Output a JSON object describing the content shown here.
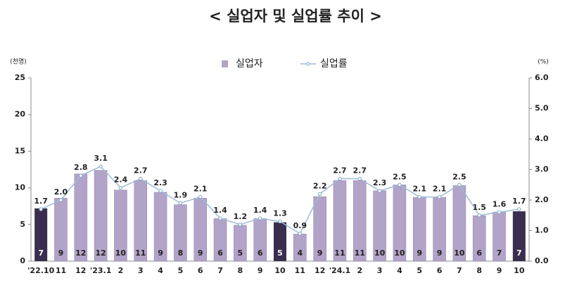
{
  "chart_data": {
    "type": "bar_line",
    "title": "< 실업자 및 실업률 추이 >",
    "y_label": "(천명)",
    "y2_label": "(%)",
    "categories": [
      "'22.10",
      "11",
      "12",
      "'23.1",
      "2",
      "3",
      "4",
      "5",
      "6",
      "7",
      "8",
      "9",
      "10",
      "11",
      "12",
      "'24.1",
      "2",
      "3",
      "4",
      "5",
      "6",
      "7",
      "8",
      "9",
      "10"
    ],
    "series": [
      {
        "name": "실업자",
        "type": "bar",
        "color": "#b2a3c8",
        "colors": [
          "#3a2e4e",
          "#b2a3c8",
          "#b2a3c8",
          "#b2a3c8",
          "#b2a3c8",
          "#b2a3c8",
          "#b2a3c8",
          "#b2a3c8",
          "#b2a3c8",
          "#b2a3c8",
          "#b2a3c8",
          "#b2a3c8",
          "#3a2e4e",
          "#b2a3c8",
          "#b2a3c8",
          "#b2a3c8",
          "#b2a3c8",
          "#b2a3c8",
          "#b2a3c8",
          "#b2a3c8",
          "#b2a3c8",
          "#b2a3c8",
          "#b2a3c8",
          "#b2a3c8",
          "#3a2e4e"
        ],
        "values": [
          7.2,
          8.6,
          11.9,
          12.4,
          9.7,
          11.0,
          9.4,
          7.7,
          8.6,
          5.8,
          4.9,
          5.8,
          5.3,
          3.7,
          8.8,
          11.0,
          11.0,
          9.6,
          10.4,
          8.7,
          8.7,
          10.3,
          6.2,
          6.7,
          6.8
        ],
        "value_labels": [
          "7",
          "9",
          "12",
          "12",
          "10",
          "11",
          "9",
          "8",
          "9",
          "6",
          "5",
          "6",
          "5",
          "4",
          "9",
          "11",
          "11",
          "10",
          "10",
          "9",
          "9",
          "10",
          "6",
          "7",
          "7"
        ]
      },
      {
        "name": "실업률",
        "type": "line",
        "axis": "y2",
        "color": "#9dbcd8",
        "values": [
          1.7,
          2.0,
          2.8,
          3.1,
          2.4,
          2.7,
          2.3,
          1.9,
          2.1,
          1.4,
          1.2,
          1.4,
          1.3,
          0.9,
          2.2,
          2.7,
          2.7,
          2.3,
          2.5,
          2.1,
          2.1,
          2.5,
          1.5,
          1.6,
          1.7
        ],
        "value_labels": [
          "1.7",
          "2.0",
          "2.8",
          "3.1",
          "2.4",
          "2.7",
          "2.3",
          "1.9",
          "2.1",
          "1.4",
          "1.2",
          "1.4",
          "1.3",
          "0.9",
          "2.2",
          "2.7",
          "2.7",
          "2.3",
          "2.5",
          "2.1",
          "2.1",
          "2.5",
          "1.5",
          "1.6",
          "1.7"
        ]
      }
    ],
    "ylim": [
      0,
      25
    ],
    "yticks": [
      0,
      5,
      10,
      15,
      20,
      25
    ],
    "y2lim": [
      0,
      6
    ],
    "y2ticks": [
      {
        "value": 0,
        "label": "0.0"
      },
      {
        "value": 1,
        "label": "1.0"
      },
      {
        "value": 2,
        "label": "2.0"
      },
      {
        "value": 3,
        "label": "3.0"
      },
      {
        "value": 4,
        "label": "4.0"
      },
      {
        "value": 5,
        "label": "5.0"
      },
      {
        "value": 6,
        "label": "6.0"
      }
    ],
    "legend": "top"
  }
}
